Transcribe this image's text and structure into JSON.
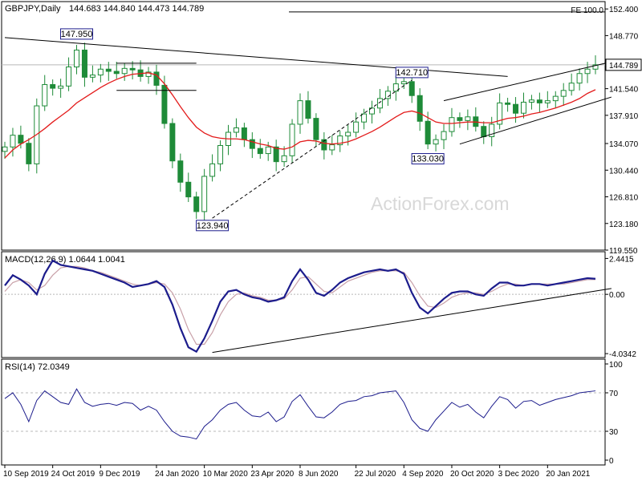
{
  "chart_data": [
    {
      "panel": "price",
      "type": "candlestick",
      "title": "GBPJPY,Daily",
      "ohlc": "144.683 144.840 144.473 144.789",
      "ylim": [
        119.55,
        153.4
      ],
      "y_ticks": [
        152.4,
        148.77,
        144.789,
        141.54,
        137.91,
        134.07,
        130.44,
        126.81,
        123.18,
        119.55
      ],
      "y_tick_labels": [
        "152.400",
        "148.770",
        "144.789",
        "141.540",
        "137.910",
        "134.070",
        "130.440",
        "126.810",
        "123.180",
        "119.550"
      ],
      "last_price": 144.789,
      "fe_label": "FE 100.0",
      "fe_level": 152.0,
      "watermark": "ActionForex.com",
      "annotations": [
        {
          "label": "147.950",
          "value": 147.95,
          "date_index": 9
        },
        {
          "label": "123.940",
          "value": 123.94,
          "date_index": 26
        },
        {
          "label": "142.710",
          "value": 142.71,
          "date_index": 51
        },
        {
          "label": "133.030",
          "value": 133.03,
          "date_index": 53
        }
      ],
      "close_series": [
        133.6,
        135.2,
        134.1,
        131.3,
        139.2,
        142.1,
        141.6,
        141.9,
        144.5,
        146.8,
        143.1,
        143.4,
        144.2,
        143.9,
        143.6,
        144.3,
        144.1,
        143.2,
        143.8,
        142.0,
        136.8,
        131.7,
        128.8,
        126.8,
        124.8,
        129.6,
        131.3,
        133.8,
        135.6,
        136.2,
        134.6,
        133.4,
        132.7,
        133.6,
        131.6,
        132.4,
        136.7,
        139.9,
        137.5,
        134.6,
        133.2,
        133.9,
        135.1,
        135.6,
        137.0,
        138.1,
        138.9,
        140.2,
        141.2,
        142.2,
        142.5,
        140.6,
        137.1,
        134.0,
        134.6,
        135.7,
        137.6,
        137.2,
        137.7,
        136.4,
        135.0,
        136.7,
        139.6,
        139.4,
        138.2,
        139.7,
        140.0,
        139.6,
        139.9,
        140.5,
        141.3,
        142.3,
        143.6,
        144.2,
        144.789
      ],
      "ma_series": [
        132.1,
        133.2,
        134.0,
        134.6,
        135.3,
        136.1,
        137.0,
        137.8,
        138.6,
        139.6,
        140.3,
        141.0,
        141.7,
        142.3,
        142.8,
        143.2,
        143.5,
        143.6,
        143.7,
        143.4,
        142.2,
        140.7,
        139.1,
        137.6,
        136.3,
        135.5,
        135.0,
        134.8,
        134.7,
        134.7,
        134.6,
        134.3,
        134.0,
        133.8,
        133.4,
        133.3,
        133.6,
        134.3,
        134.5,
        134.4,
        134.1,
        134.0,
        134.1,
        134.3,
        134.7,
        135.2,
        135.7,
        136.3,
        137.0,
        137.7,
        138.3,
        138.5,
        138.2,
        137.6,
        137.0,
        136.8,
        136.8,
        136.9,
        137.0,
        137.0,
        136.9,
        136.9,
        137.2,
        137.5,
        137.6,
        137.8,
        138.1,
        138.3,
        138.6,
        138.9,
        139.3,
        139.7,
        140.2,
        140.9,
        141.4
      ],
      "trendlines": [
        {
          "from": [
            0,
            148.5
          ],
          "to": [
            63,
            143.2
          ]
        },
        {
          "from": [
            26,
            123.9
          ],
          "to": [
            51,
            142.7
          ]
        },
        {
          "from": [
            55,
            139.9
          ],
          "to": [
            76,
            145.2
          ]
        },
        {
          "from": [
            57,
            134.0
          ],
          "to": [
            76,
            140.4
          ]
        },
        {
          "from": [
            14,
            145.0
          ],
          "to": [
            24,
            145.0
          ]
        },
        {
          "from": [
            14,
            141.3
          ],
          "to": [
            24,
            141.3
          ]
        }
      ]
    },
    {
      "panel": "macd",
      "type": "line",
      "title": "MACD(12,26,9) 1.0644 1.0041",
      "ylim": [
        -4.3,
        2.9
      ],
      "y_tick_labels": [
        "2.4415",
        "0.00",
        "-4.0342"
      ],
      "y_ticks": [
        2.4415,
        0.0,
        -4.0342
      ],
      "macd_series": [
        0.6,
        1.3,
        1.0,
        0.6,
        0.0,
        1.4,
        2.3,
        2.0,
        1.9,
        1.8,
        1.7,
        1.6,
        1.4,
        1.2,
        1.0,
        0.8,
        0.5,
        0.6,
        0.7,
        0.9,
        0.5,
        -0.7,
        -2.3,
        -3.6,
        -3.9,
        -3.0,
        -1.8,
        -0.5,
        0.2,
        0.3,
        0.0,
        -0.2,
        -0.3,
        -0.5,
        -0.4,
        -0.2,
        0.9,
        1.7,
        1.0,
        0.1,
        -0.1,
        0.3,
        0.8,
        1.1,
        1.3,
        1.5,
        1.6,
        1.7,
        1.6,
        1.7,
        1.4,
        0.1,
        -0.9,
        -1.3,
        -0.8,
        -0.3,
        0.1,
        0.2,
        0.2,
        0.0,
        -0.1,
        0.4,
        0.8,
        0.8,
        0.6,
        0.6,
        0.7,
        0.7,
        0.6,
        0.7,
        0.8,
        0.9,
        1.0,
        1.1,
        1.06
      ],
      "signal_series": [
        0.2,
        0.8,
        1.0,
        0.8,
        0.3,
        0.6,
        1.3,
        1.8,
        1.9,
        1.9,
        1.8,
        1.6,
        1.5,
        1.3,
        1.1,
        0.9,
        0.7,
        0.6,
        0.7,
        0.8,
        0.7,
        0.1,
        -1.0,
        -2.4,
        -3.4,
        -3.4,
        -2.6,
        -1.4,
        -0.5,
        0.0,
        0.1,
        -0.1,
        -0.2,
        -0.4,
        -0.4,
        -0.3,
        0.3,
        1.1,
        1.2,
        0.7,
        0.2,
        0.1,
        0.5,
        0.9,
        1.1,
        1.3,
        1.5,
        1.6,
        1.6,
        1.6,
        1.5,
        0.8,
        -0.1,
        -0.8,
        -0.9,
        -0.6,
        -0.2,
        0.0,
        0.1,
        0.1,
        0.0,
        0.2,
        0.5,
        0.7,
        0.7,
        0.6,
        0.7,
        0.7,
        0.7,
        0.7,
        0.7,
        0.8,
        0.9,
        1.0,
        1.0041
      ],
      "trendlines": [
        {
          "from": [
            26,
            -3.95
          ],
          "to": [
            76,
            0.4
          ]
        }
      ]
    },
    {
      "panel": "rsi",
      "type": "line",
      "title": "RSI(14) 72.0349",
      "ylim": [
        0,
        100
      ],
      "y_tick_labels": [
        "100",
        "70",
        "30",
        "0"
      ],
      "y_ticks": [
        100,
        70,
        30,
        0
      ],
      "reference_levels": [
        70,
        30
      ],
      "rsi_series": [
        64,
        70,
        58,
        40,
        62,
        72,
        66,
        60,
        58,
        74,
        60,
        56,
        58,
        59,
        57,
        60,
        59,
        52,
        56,
        52,
        40,
        30,
        25,
        24,
        22,
        35,
        42,
        52,
        58,
        60,
        52,
        46,
        45,
        50,
        40,
        45,
        61,
        68,
        56,
        45,
        44,
        50,
        58,
        61,
        62,
        66,
        67,
        70,
        71,
        72,
        60,
        42,
        33,
        30,
        42,
        51,
        60,
        55,
        58,
        50,
        44,
        56,
        66,
        63,
        54,
        61,
        62,
        57,
        60,
        63,
        65,
        67,
        70,
        71,
        72.03
      ]
    }
  ],
  "x_axis": {
    "labels": [
      "10 Sep 2019",
      "24 Oct 2019",
      "9 Dec 2019",
      "24 Jan 2020",
      "10 Mar 2020",
      "23 Apr 2020",
      "8 Jun 2020",
      "22 Jul 2020",
      "4 Sep 2020",
      "20 Oct 2020",
      "3 Dec 2020",
      "20 Jan 2021"
    ],
    "label_indices": [
      0,
      6,
      12,
      19,
      25,
      31,
      37,
      44,
      50,
      56,
      62,
      68
    ]
  },
  "colors": {
    "candle": "#1e8b38",
    "ma": "#e31b1b",
    "macd": "#1c1c8c",
    "signal": "#c8a0a8",
    "trendline": "#000000",
    "grid": "#b8b8b8",
    "label_border": "#1c1c8c"
  }
}
